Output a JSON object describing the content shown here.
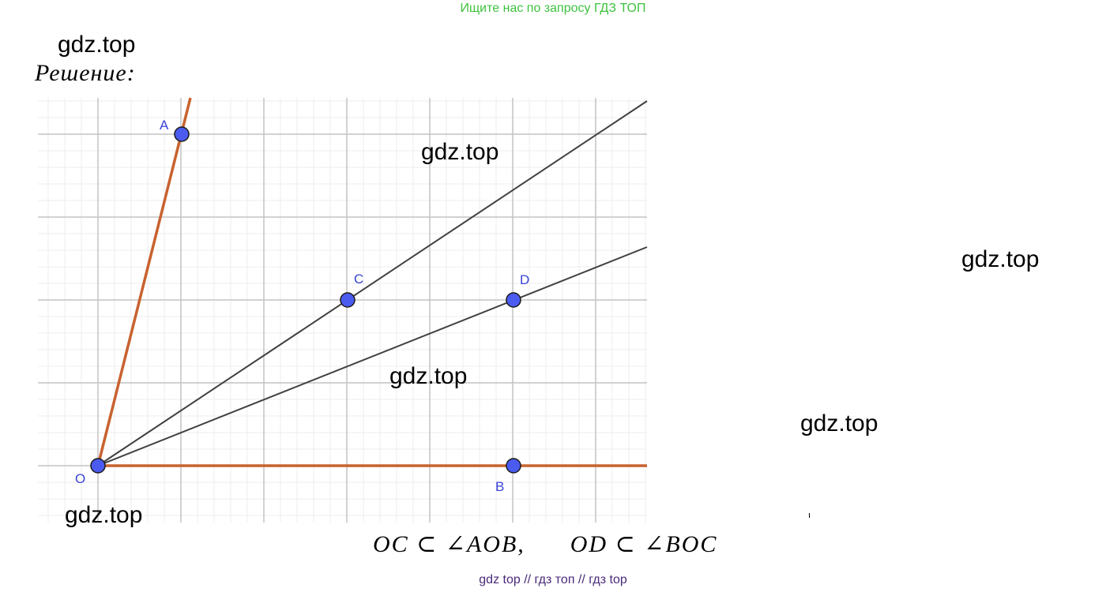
{
  "header": {
    "banner": "Ищите нас по запросу ГДЗ ТОП"
  },
  "watermarks": {
    "w1": "gdz.top",
    "w2": "gdz.top",
    "w3": "gdz.top",
    "w4": "gdz.top",
    "w5": "gdz.top",
    "w6": "gdz.top"
  },
  "solution_label": "Решение:",
  "points": {
    "O": "O",
    "A": "A",
    "B": "B",
    "C": "C",
    "D": "D"
  },
  "formula": {
    "part1": "OC ⊂ ∠AOB,",
    "part2": "OD ⊂ ∠BOC"
  },
  "footer": {
    "links": "gdz top  //  гдз топ  //  гдз top"
  },
  "colors": {
    "banner": "#3fc23f",
    "ray_orange": "#c8622f",
    "ray_dark": "#404040",
    "point_fill": "#4b5bef",
    "point_label": "#3a44d8",
    "grid_major": "#c4c4c4",
    "grid_minor": "#ececec",
    "footer_link": "#4a2a7a"
  }
}
